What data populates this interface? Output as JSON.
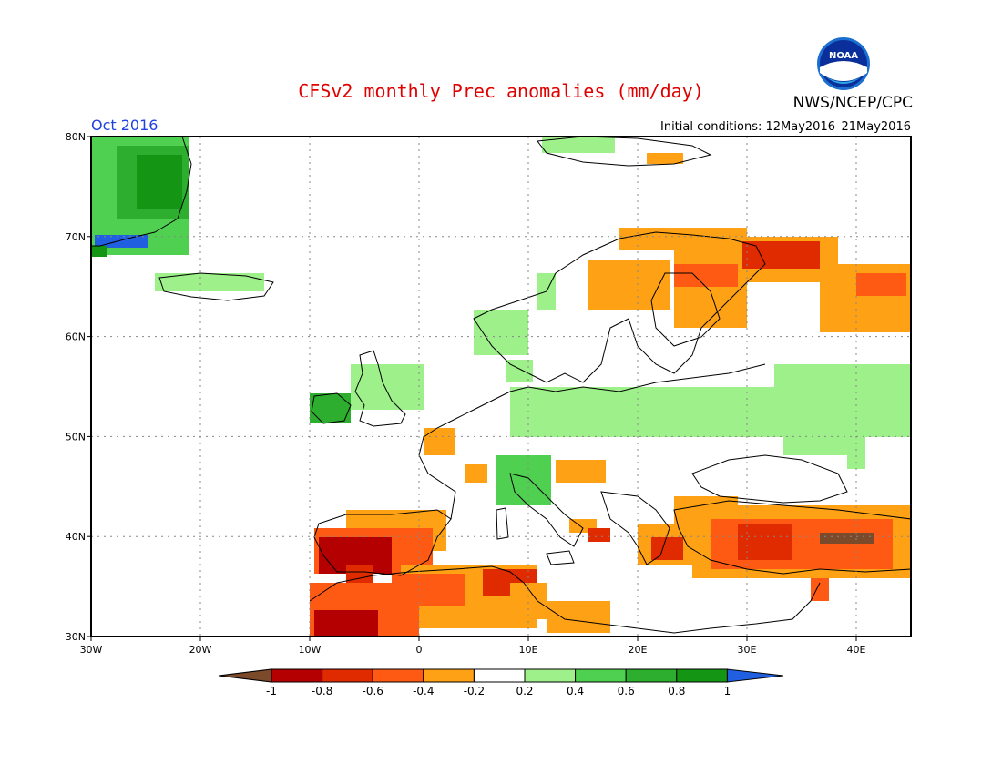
{
  "header": {
    "title": "CFSv2 monthly Prec anomalies (mm/day)",
    "month": "Oct 2016",
    "agency": "NWS/NCEP/CPC",
    "initial_conditions": "Initial conditions: 12May2016–21May2016",
    "logo_text": "NOAA",
    "title_color": "#e00000",
    "month_color": "#2040e0"
  },
  "map": {
    "lon_labels": [
      "30W",
      "20W",
      "10W",
      "0",
      "10E",
      "20E",
      "30E",
      "40E"
    ],
    "lat_labels": [
      "30N",
      "40N",
      "50N",
      "60N",
      "70N",
      "80N"
    ],
    "lon_range": [
      -30,
      45
    ],
    "lat_range": [
      30,
      80
    ],
    "grid": true
  },
  "legend": {
    "labels": [
      "-1",
      "-0.8",
      "-0.6",
      "-0.4",
      "-0.2",
      "0.2",
      "0.4",
      "0.6",
      "0.8",
      "1"
    ],
    "colors": [
      "#7a4a2a",
      "#b40000",
      "#e02a00",
      "#ff5a14",
      "#ffa114",
      "#ffffff",
      "#9ef08a",
      "#50d050",
      "#2eae2e",
      "#149614",
      "#2060e0"
    ]
  }
}
